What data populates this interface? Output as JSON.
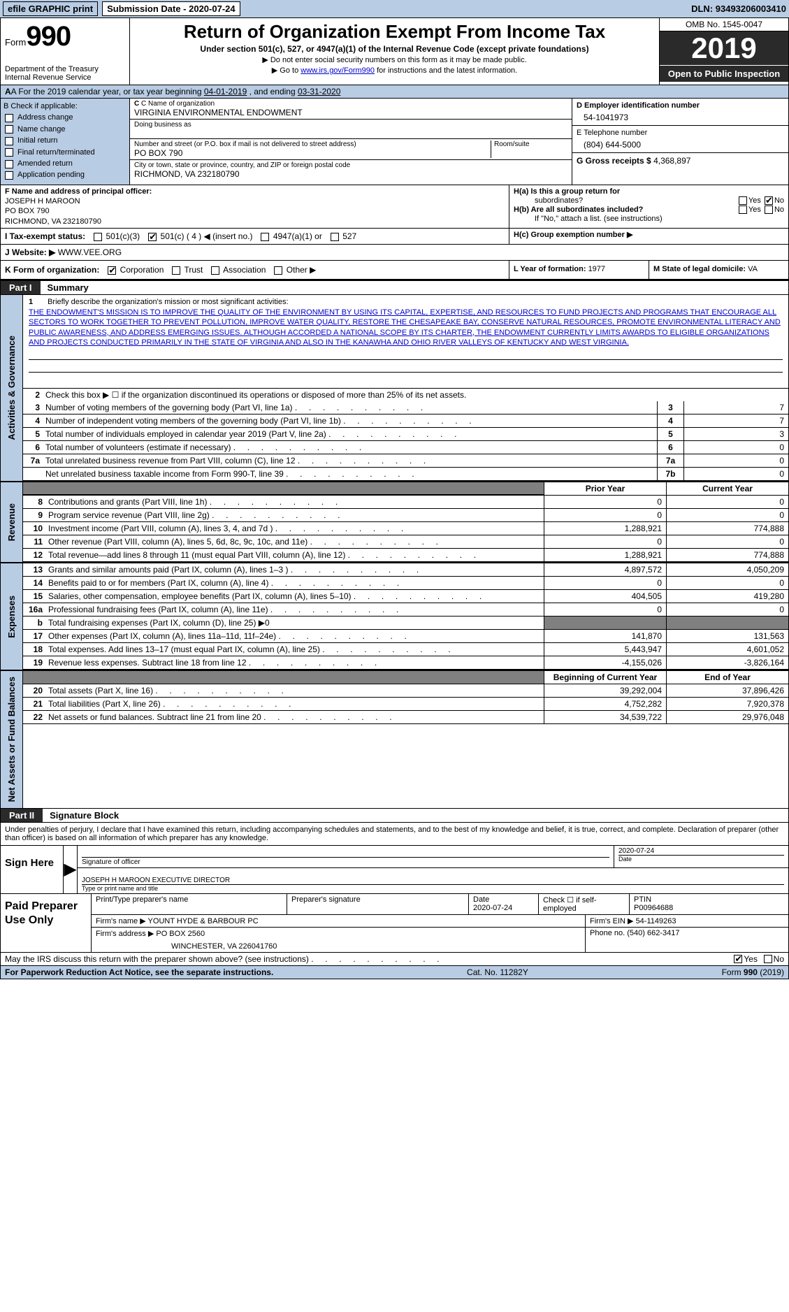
{
  "top": {
    "efile": "efile GRAPHIC print",
    "sub_label": "Submission Date - ",
    "sub_date": "2020-07-24",
    "dln_label": "DLN: ",
    "dln": "93493206003410"
  },
  "header": {
    "form_word": "Form",
    "form_num": "990",
    "dept1": "Department of the Treasury",
    "dept2": "Internal Revenue Service",
    "title": "Return of Organization Exempt From Income Tax",
    "sub": "Under section 501(c), 527, or 4947(a)(1) of the Internal Revenue Code (except private foundations)",
    "note1": "▶ Do not enter social security numbers on this form as it may be made public.",
    "note2_pre": "▶ Go to ",
    "note2_link": "www.irs.gov/Form990",
    "note2_post": " for instructions and the latest information.",
    "omb": "OMB No. 1545-0047",
    "year": "2019",
    "open": "Open to Public Inspection"
  },
  "rowA": {
    "text_pre": "A For the 2019 calendar year, or tax year beginning ",
    "begin": "04-01-2019",
    "mid": "   , and ending ",
    "end": "03-31-2020"
  },
  "B": {
    "label": "B Check if applicable:",
    "opts": [
      "Address change",
      "Name change",
      "Initial return",
      "Final return/terminated",
      "Amended return",
      "Application pending"
    ]
  },
  "C": {
    "name_lbl": "C Name of organization",
    "name": "VIRGINIA ENVIRONMENTAL ENDOWMENT",
    "dba_lbl": "Doing business as",
    "dba": "",
    "street_lbl": "Number and street (or P.O. box if mail is not delivered to street address)",
    "room_lbl": "Room/suite",
    "street": "PO BOX 790",
    "city_lbl": "City or town, state or province, country, and ZIP or foreign postal code",
    "city": "RICHMOND, VA  232180790"
  },
  "D": {
    "lbl": "D Employer identification number",
    "val": "54-1041973"
  },
  "E": {
    "lbl": "E Telephone number",
    "val": "(804) 644-5000"
  },
  "G": {
    "lbl": "G Gross receipts $ ",
    "val": "4,368,897"
  },
  "F": {
    "lbl": "F  Name and address of principal officer:",
    "name": "JOSEPH H MAROON",
    "addr1": "PO BOX 790",
    "addr2": "RICHMOND, VA  232180790"
  },
  "H": {
    "a": "H(a)  Is this a group return for",
    "a2": "subordinates?",
    "b": "H(b)  Are all subordinates included?",
    "b2": "If \"No,\" attach a list. (see instructions)",
    "c": "H(c)  Group exemption number ▶",
    "yes": "Yes",
    "no": "No"
  },
  "I": {
    "lbl": "I  Tax-exempt status:",
    "o1": "501(c)(3)",
    "o2": "501(c) ( 4 ) ◀ (insert no.)",
    "o3": "4947(a)(1) or",
    "o4": "527"
  },
  "J": {
    "lbl": "J  Website: ▶",
    "val": " WWW.VEE.ORG"
  },
  "K": {
    "lbl": "K Form of organization:",
    "o1": "Corporation",
    "o2": "Trust",
    "o3": "Association",
    "o4": "Other ▶"
  },
  "L": {
    "lbl": "L Year of formation: ",
    "val": "1977"
  },
  "M": {
    "lbl": "M State of legal domicile: ",
    "val": "VA"
  },
  "parts": {
    "p1": "Part I",
    "p1t": "Summary",
    "p2": "Part II",
    "p2t": "Signature Block"
  },
  "vtabs": {
    "ag": "Activities & Governance",
    "rev": "Revenue",
    "exp": "Expenses",
    "na": "Net Assets or Fund Balances"
  },
  "mission": {
    "n": "1",
    "lbl": "Briefly describe the organization's mission or most significant activities:",
    "text": "THE ENDOWMENT'S MISSION IS TO IMPROVE THE QUALITY OF THE ENVIRONMENT BY USING ITS CAPITAL, EXPERTISE, AND RESOURCES TO FUND PROJECTS AND PROGRAMS THAT ENCOURAGE ALL SECTORS TO WORK TOGETHER TO PREVENT POLLUTION, IMPROVE WATER QUALITY, RESTORE THE CHESAPEAKE BAY, CONSERVE NATURAL RESOURCES, PROMOTE ENVIRONMENTAL LITERACY AND PUBLIC AWARENESS, AND ADDRESS EMERGING ISSUES. ALTHOUGH ACCORDED A NATIONAL SCOPE BY ITS CHARTER, THE ENDOWMENT CURRENTLY LIMITS AWARDS TO ELIGIBLE ORGANIZATIONS AND PROJECTS CONDUCTED PRIMARILY IN THE STATE OF VIRGINIA AND ALSO IN THE KANAWHA AND OHIO RIVER VALLEYS OF KENTUCKY AND WEST VIRGINIA."
  },
  "gov": {
    "l2": "Check this box ▶ ☐ if the organization discontinued its operations or disposed of more than 25% of its net assets.",
    "rows": [
      {
        "n": "3",
        "d": "Number of voting members of the governing body (Part VI, line 1a)",
        "b": "3",
        "v": "7"
      },
      {
        "n": "4",
        "d": "Number of independent voting members of the governing body (Part VI, line 1b)",
        "b": "4",
        "v": "7"
      },
      {
        "n": "5",
        "d": "Total number of individuals employed in calendar year 2019 (Part V, line 2a)",
        "b": "5",
        "v": "3"
      },
      {
        "n": "6",
        "d": "Total number of volunteers (estimate if necessary)",
        "b": "6",
        "v": "0"
      },
      {
        "n": "7a",
        "d": "Total unrelated business revenue from Part VIII, column (C), line 12",
        "b": "7a",
        "v": "0"
      },
      {
        "n": "",
        "d": "Net unrelated business taxable income from Form 990-T, line 39",
        "b": "7b",
        "v": "0"
      }
    ]
  },
  "fin_hdr": {
    "prior": "Prior Year",
    "current": "Current Year"
  },
  "rev": [
    {
      "n": "8",
      "d": "Contributions and grants (Part VIII, line 1h)",
      "p": "0",
      "c": "0"
    },
    {
      "n": "9",
      "d": "Program service revenue (Part VIII, line 2g)",
      "p": "0",
      "c": "0"
    },
    {
      "n": "10",
      "d": "Investment income (Part VIII, column (A), lines 3, 4, and 7d )",
      "p": "1,288,921",
      "c": "774,888"
    },
    {
      "n": "11",
      "d": "Other revenue (Part VIII, column (A), lines 5, 6d, 8c, 9c, 10c, and 11e)",
      "p": "0",
      "c": "0"
    },
    {
      "n": "12",
      "d": "Total revenue—add lines 8 through 11 (must equal Part VIII, column (A), line 12)",
      "p": "1,288,921",
      "c": "774,888"
    }
  ],
  "exp": [
    {
      "n": "13",
      "d": "Grants and similar amounts paid (Part IX, column (A), lines 1–3 )",
      "p": "4,897,572",
      "c": "4,050,209"
    },
    {
      "n": "14",
      "d": "Benefits paid to or for members (Part IX, column (A), line 4)",
      "p": "0",
      "c": "0"
    },
    {
      "n": "15",
      "d": "Salaries, other compensation, employee benefits (Part IX, column (A), lines 5–10)",
      "p": "404,505",
      "c": "419,280"
    },
    {
      "n": "16a",
      "d": "Professional fundraising fees (Part IX, column (A), line 11e)",
      "p": "0",
      "c": "0"
    },
    {
      "n": "b",
      "d": "Total fundraising expenses (Part IX, column (D), line 25) ▶0",
      "p": "",
      "c": "",
      "grey": true
    },
    {
      "n": "17",
      "d": "Other expenses (Part IX, column (A), lines 11a–11d, 11f–24e)",
      "p": "141,870",
      "c": "131,563"
    },
    {
      "n": "18",
      "d": "Total expenses. Add lines 13–17 (must equal Part IX, column (A), line 25)",
      "p": "5,443,947",
      "c": "4,601,052"
    },
    {
      "n": "19",
      "d": "Revenue less expenses. Subtract line 18 from line 12",
      "p": "-4,155,026",
      "c": "-3,826,164"
    }
  ],
  "na_hdr": {
    "begin": "Beginning of Current Year",
    "end": "End of Year"
  },
  "na": [
    {
      "n": "20",
      "d": "Total assets (Part X, line 16)",
      "p": "39,292,004",
      "c": "37,896,426"
    },
    {
      "n": "21",
      "d": "Total liabilities (Part X, line 26)",
      "p": "4,752,282",
      "c": "7,920,378"
    },
    {
      "n": "22",
      "d": "Net assets or fund balances. Subtract line 21 from line 20",
      "p": "34,539,722",
      "c": "29,976,048"
    }
  ],
  "sig": {
    "intro": "Under penalties of perjury, I declare that I have examined this return, including accompanying schedules and statements, and to the best of my knowledge and belief, it is true, correct, and complete. Declaration of preparer (other than officer) is based on all information of which preparer has any knowledge.",
    "sign_here": "Sign Here",
    "sig_lbl": "Signature of officer",
    "date_lbl": "Date",
    "date_val": "2020-07-24",
    "name": "JOSEPH H MAROON  EXECUTIVE DIRECTOR",
    "name_lbl": "Type or print name and title"
  },
  "paid": {
    "title": "Paid Preparer Use Only",
    "h1": "Print/Type preparer's name",
    "h2": "Preparer's signature",
    "h3": "Date",
    "h3v": "2020-07-24",
    "h4": "Check ☐ if self-employed",
    "h5": "PTIN",
    "h5v": "P00964688",
    "firm_lbl": "Firm's name    ▶ ",
    "firm": "YOUNT HYDE & BARBOUR PC",
    "ein_lbl": "Firm's EIN ▶ ",
    "ein": "54-1149263",
    "addr_lbl": "Firm's address ▶ ",
    "addr1": "PO BOX 2560",
    "addr2": "WINCHESTER, VA  226041760",
    "phone_lbl": "Phone no. ",
    "phone": "(540) 662-3417"
  },
  "discuss": {
    "q": "May the IRS discuss this return with the preparer shown above? (see instructions)",
    "yes": "Yes",
    "no": "No"
  },
  "footer": {
    "left": "For Paperwork Reduction Act Notice, see the separate instructions.",
    "mid": "Cat. No. 11282Y",
    "right": "Form 990 (2019)"
  }
}
